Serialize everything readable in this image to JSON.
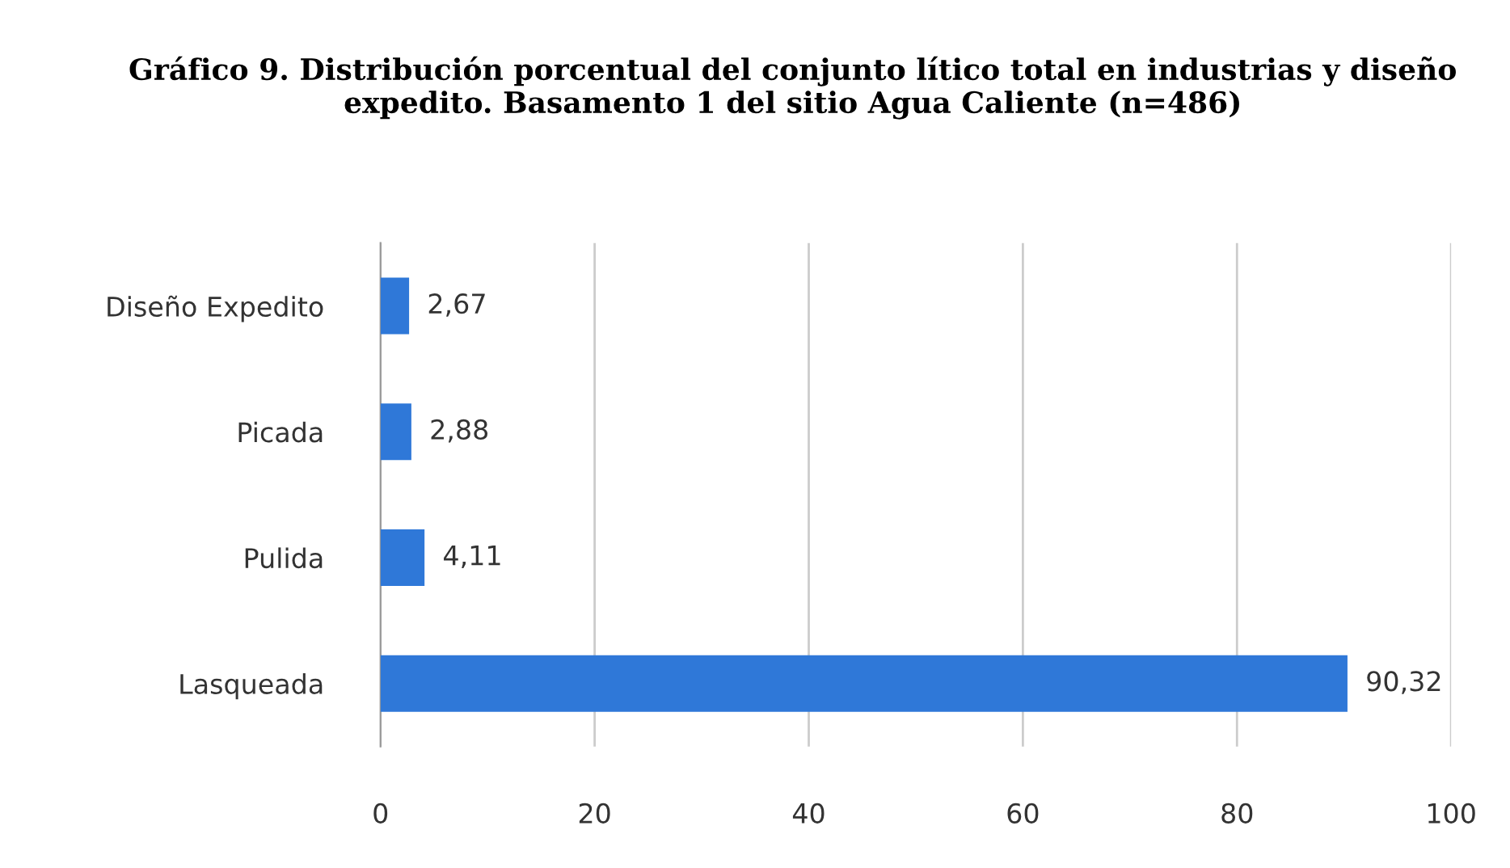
{
  "chart_data": {
    "type": "bar",
    "orientation": "horizontal",
    "title": "Gráfico 9. Distribución porcentual del conjunto lítico total en industrias y diseño expedito. Basamento 1 del sitio Agua Caliente (n=486)",
    "categories": [
      "Diseño Expedito",
      "Picada",
      "Pulida",
      "Lasqueada"
    ],
    "values": [
      2.67,
      2.88,
      4.11,
      90.32
    ],
    "value_labels": [
      "2,67",
      "2,88",
      "4,11",
      "90,32"
    ],
    "color": "#2f78d8",
    "xlim": [
      0,
      100
    ],
    "xticks": [
      0,
      20,
      40,
      60,
      80,
      100
    ],
    "grid": "x",
    "legend": false
  }
}
